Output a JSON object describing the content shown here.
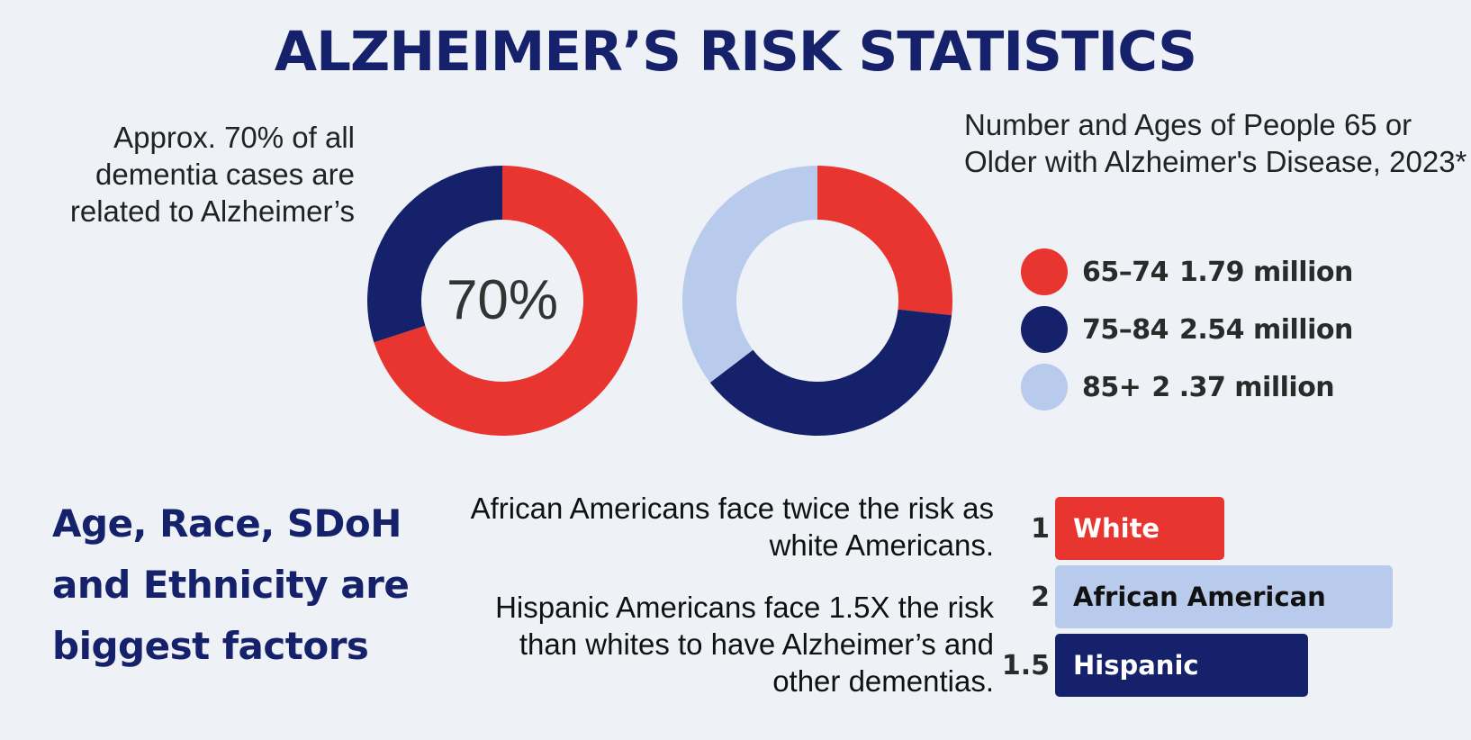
{
  "title": "ALZHEIMER’S RISK STATISTICS",
  "left_note": "Approx. 70% of all dementia cases are related to Alzheimer’s",
  "right_note": "Number and Ages of People 65 or Older with Alzheimer's Disease, 2023*",
  "factors_heading": "Age, Race, SDoH and Ethnicity are biggest factors",
  "stat_1": "African Americans face twice the risk as white Americans.",
  "stat_2": "Hispanic Americans face 1.5X the risk than whites to have Alzheimer’s and other dementias.",
  "colors": {
    "red": "#e83530",
    "navy": "#16216b",
    "light_blue": "#b9cbec",
    "title": "#16216b"
  },
  "chart_data": [
    {
      "type": "pie",
      "center_label": "70%",
      "slices": [
        {
          "label": "Alzheimer’s",
          "value": 70,
          "color": "#e83530"
        },
        {
          "label": "",
          "value": 30,
          "color": "#16216b"
        }
      ]
    },
    {
      "type": "pie",
      "slices": [
        {
          "label": "65–74",
          "value": 1.79,
          "value_label": "1.79 million",
          "color": "#e83530"
        },
        {
          "label": "75–84",
          "value": 2.54,
          "value_label": "2.54 million",
          "color": "#16216b"
        },
        {
          "label": "85+",
          "value": 2.37,
          "value_label": "2 .37 million",
          "color": "#b9cbec"
        }
      ]
    },
    {
      "type": "bar",
      "orientation": "horizontal",
      "categories": [
        "White",
        "African American",
        "Hispanic"
      ],
      "values": [
        1,
        2,
        1.5
      ],
      "value_labels": [
        "1",
        "2",
        "1.5"
      ],
      "colors": [
        "#e83530",
        "#b9cbec",
        "#16216b"
      ],
      "text_colors": [
        "#ffffff",
        "#111111",
        "#ffffff"
      ]
    }
  ]
}
